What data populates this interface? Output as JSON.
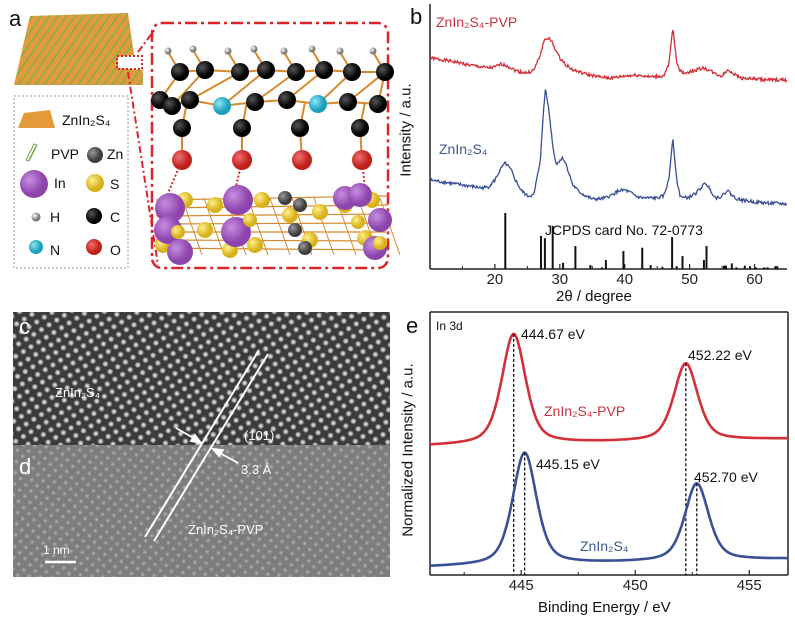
{
  "panels": {
    "a": {
      "letter": "a",
      "legend": {
        "sheet": "ZnIn₂S₄",
        "pvp": "PVP",
        "zn": "Zn",
        "in": "In",
        "s": "S",
        "h": "H",
        "c": "C",
        "n": "N",
        "o": "O"
      },
      "colors": {
        "In": "#9b59b6",
        "S": "#e8c62c",
        "Zn": "#555555",
        "C": "#111111",
        "H": "#d8d8d8",
        "N": "#2bb5cf",
        "O": "#d0302b",
        "bond": "#d68a2e",
        "frame": "#d9262b"
      }
    },
    "c": {
      "letter": "c",
      "material": "ZnIn₂S₄",
      "plane": "(101)",
      "spacing": "3.3 Å"
    },
    "d": {
      "letter": "d",
      "material": "ZnIn₂S₄-PVP",
      "scale_bar": "1 nm"
    }
  },
  "chart_data": [
    {
      "panel": "b",
      "letter": "b",
      "type": "line",
      "xlabel": "2θ / degree",
      "ylabel": "Intensity / a.u.",
      "xlim": [
        10,
        65
      ],
      "ylim": [
        0,
        265
      ],
      "xticks": [
        20,
        30,
        40,
        50,
        60
      ],
      "grid": false,
      "series": [
        {
          "name": "ZnIn₂S₄-PVP",
          "color": "#d3303a",
          "x": [
            10,
            12,
            14,
            16,
            18,
            19,
            20,
            21,
            22,
            23,
            24,
            25,
            26,
            27,
            27.6,
            28.2,
            28.8,
            29.5,
            30,
            31,
            32,
            34,
            36,
            38,
            40,
            42,
            44,
            46,
            46.8,
            47.4,
            48,
            48.5,
            49,
            50,
            51,
            52,
            53,
            54,
            55,
            55.5,
            56,
            56.5,
            57,
            58,
            60,
            62,
            65
          ],
          "y": [
            211,
            209,
            207,
            204,
            202,
            201,
            202,
            205,
            203,
            199,
            197,
            196,
            199,
            214,
            229,
            231,
            227,
            217,
            211,
            204,
            199,
            195,
            192,
            191,
            193,
            194,
            192,
            193,
            204,
            241,
            207,
            199,
            196,
            197,
            199,
            201,
            199,
            195,
            193,
            197,
            199,
            197,
            194,
            191,
            190,
            189,
            189
          ]
        },
        {
          "name": "ZnIn₂S₄",
          "color": "#3a4f96",
          "x": [
            10,
            12,
            14,
            16,
            18,
            19,
            20,
            21,
            21.6,
            22.5,
            23,
            24,
            25,
            26,
            27,
            27.5,
            27.8,
            28.3,
            29,
            29.5,
            30,
            30.5,
            31,
            32,
            33,
            34,
            35,
            36,
            37,
            38,
            39,
            40,
            41,
            42,
            43,
            44,
            45,
            46,
            46.8,
            47.4,
            48,
            48.5,
            49,
            50,
            51,
            52,
            52.5,
            53,
            54,
            55,
            55.8,
            56.5,
            57,
            58,
            60,
            62,
            65
          ],
          "y": [
            89,
            87,
            85,
            83,
            81,
            82,
            89,
            101,
            106,
            99,
            91,
            79,
            73,
            74,
            109,
            159,
            182,
            159,
            119,
            104,
            109,
            111,
            104,
            84,
            77,
            73,
            70,
            70,
            71,
            74,
            78,
            79,
            76,
            72,
            71,
            71,
            71,
            73,
            89,
            132,
            89,
            74,
            71,
            72,
            76,
            83,
            86,
            81,
            71,
            73,
            79,
            74,
            71,
            69,
            67,
            66,
            65
          ]
        },
        {
          "name": "JCPDS card No. 72-0773",
          "type": "stick",
          "color": "#111111",
          "x": [
            21.6,
            27.1,
            27.7,
            28.9,
            30.5,
            32.4,
            34.7,
            36.5,
            37.1,
            39.8,
            42.7,
            44.0,
            45.8,
            47.3,
            48.0,
            48.9,
            52.2,
            52.6,
            55.3,
            55.6,
            56.5,
            57.2,
            58.5,
            59.3,
            60.2,
            61.5,
            62.0,
            63.2,
            63.5
          ],
          "y": [
            100,
            59,
            55,
            77,
            11,
            41,
            7,
            3,
            16,
            32,
            38,
            7,
            4,
            57,
            5,
            23,
            16,
            41,
            6,
            6,
            10,
            3,
            6,
            5,
            3,
            3,
            3,
            5,
            5
          ]
        }
      ],
      "annotation": "JCPDS card No. 72-0773"
    },
    {
      "panel": "e",
      "letter": "e",
      "type": "line",
      "title": "In 3d",
      "xlabel": "Binding Energy / eV",
      "ylabel": "Normalized Intensity / a.u.",
      "xlim": [
        441,
        456.7
      ],
      "ylim": [
        0,
        265
      ],
      "xticks": [
        445,
        450,
        455
      ],
      "grid": false,
      "series": [
        {
          "name": "ZnIn₂S₄-PVP",
          "color": "#d3303a",
          "baseline": [
            130,
            137
          ],
          "peaks": [
            {
              "center": 444.67,
              "height": 111,
              "label": "444.67 eV"
            },
            {
              "center": 452.22,
              "height": 78,
              "label": "452.22 eV"
            }
          ]
        },
        {
          "name": "ZnIn₂S₄",
          "color": "#3a4f96",
          "baseline": [
            8,
            16
          ],
          "peaks": [
            {
              "center": 445.15,
              "height": 113,
              "label": "445.15 eV"
            },
            {
              "center": 452.7,
              "height": 78,
              "label": "452.70 eV"
            }
          ]
        }
      ]
    }
  ]
}
